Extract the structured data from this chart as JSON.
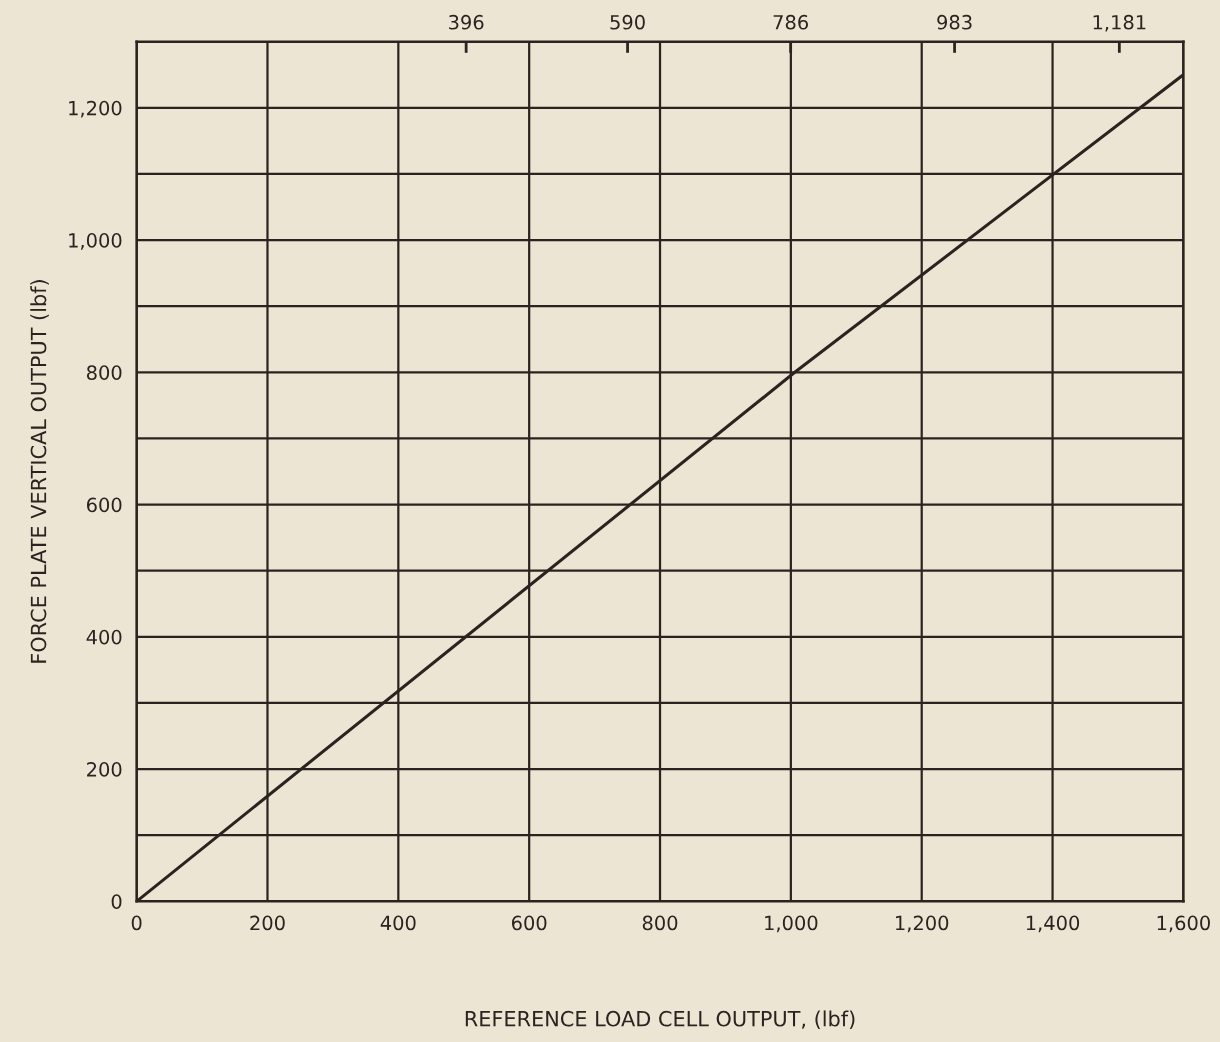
{
  "chart_data": {
    "type": "line",
    "xlabel": "REFERENCE LOAD CELL OUTPUT, (lbf)",
    "ylabel": "FORCE PLATE VERTICAL OUTPUT (lbf)",
    "x": [
      0,
      1006,
      1600
    ],
    "series": [
      {
        "color": "#2a2420",
        "values": [
          0,
          800,
          1250
        ]
      }
    ],
    "xlim": [
      0,
      1600
    ],
    "xticks": [
      0,
      200,
      400,
      600,
      800,
      {
        "value": 1000,
        "label": "1,000"
      },
      {
        "value": 1200,
        "label": "1,200"
      },
      {
        "value": 1400,
        "label": "1,400"
      },
      {
        "value": 1600,
        "label": "1,600"
      }
    ],
    "ylim": [
      0,
      1300
    ],
    "yticks": [
      0,
      {
        "value": 100,
        "label": null
      },
      200,
      {
        "value": 300,
        "label": null
      },
      400,
      {
        "value": 500,
        "label": null
      },
      600,
      {
        "value": 700,
        "label": null
      },
      800,
      {
        "value": 900,
        "label": null
      },
      {
        "value": 1000,
        "label": "1,000"
      },
      {
        "value": 1100,
        "label": null
      },
      {
        "value": 1200,
        "label": "1,200"
      },
      {
        "value": 1300,
        "label": null
      }
    ],
    "x2lim": [
      0,
      1258
    ],
    "x2ticks": [
      396,
      590,
      786,
      983,
      {
        "value": 1181,
        "label": "1,181"
      }
    ],
    "grid": true,
    "marker": "none",
    "line_style": "solid"
  }
}
